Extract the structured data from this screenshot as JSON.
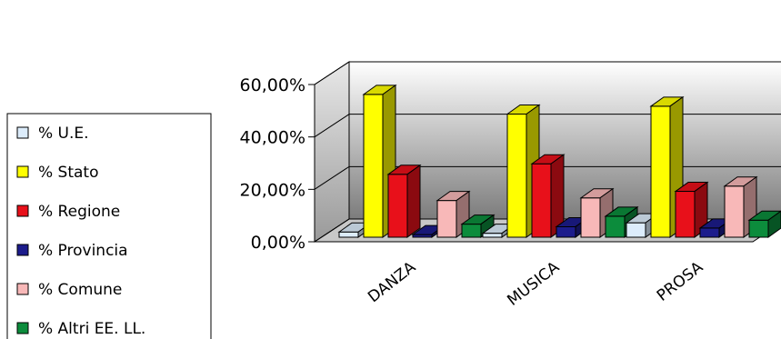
{
  "chart_data": {
    "type": "bar",
    "style": "3d-clustered-column",
    "categories": [
      "DANZA",
      "MUSICA",
      "PROSA"
    ],
    "series": [
      {
        "name": "% U.E.",
        "color": "#dcecfb",
        "values": [
          2.0,
          1.5,
          5.5
        ]
      },
      {
        "name": "% Stato",
        "color": "#ffff00",
        "values": [
          54.5,
          47.0,
          50.0
        ]
      },
      {
        "name": "% Regione",
        "color": "#e8101a",
        "values": [
          24.0,
          28.0,
          17.5
        ]
      },
      {
        "name": "% Provincia",
        "color": "#1c1c8c",
        "values": [
          1.0,
          4.0,
          3.5
        ]
      },
      {
        "name": "% Comune",
        "color": "#f8b8b8",
        "values": [
          14.0,
          15.0,
          19.5
        ]
      },
      {
        "name": "% Altri EE. LL.",
        "color": "#0c8c3c",
        "values": [
          5.0,
          8.0,
          6.5
        ]
      }
    ],
    "yticks": [
      "0,00%",
      "20,00%",
      "40,00%",
      "60,00%"
    ],
    "ylim": [
      0,
      60
    ],
    "grid": true,
    "legend_position": "left",
    "title": "",
    "xlabel": "",
    "ylabel": ""
  }
}
